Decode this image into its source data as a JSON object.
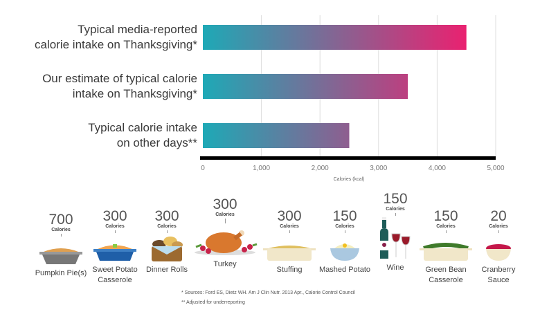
{
  "chart_data": {
    "type": "bar",
    "orientation": "horizontal",
    "categories": [
      "Typical media-reported\ncalorie intake on Thanksgiving*",
      "Our estimate of typical calorie\nintake on Thanksgiving*",
      "Typical calorie intake\non other days**"
    ],
    "values": [
      4500,
      3500,
      2500
    ],
    "xlabel": "Calories (kcal)",
    "xlim": [
      0,
      5000
    ],
    "xticks": [
      "0",
      "1,000",
      "2,000",
      "3,000",
      "4,000",
      "5,000"
    ],
    "xtick_values": [
      0,
      1000,
      2000,
      3000,
      4000,
      5000
    ],
    "grid": "vertical",
    "colors": {
      "gradient_start": "#1ea9b6",
      "gradient_end": "#ea2170",
      "axis": "#000000",
      "grid": "#dddddd"
    }
  },
  "foods": [
    {
      "value": "700",
      "unit": "Calories",
      "label": "Pumpkin Pie(s)",
      "icon": "pie-icon"
    },
    {
      "value": "300",
      "unit": "Calories",
      "label": "Sweet Potato\nCasserole",
      "icon": "casserole-dish-icon"
    },
    {
      "value": "300",
      "unit": "Calories",
      "label": "Dinner Rolls",
      "icon": "bread-basket-icon"
    },
    {
      "value": "300",
      "unit": "Calories",
      "label": "Turkey",
      "icon": "turkey-icon"
    },
    {
      "value": "300",
      "unit": "Calories",
      "label": "Stuffing",
      "icon": "stuffing-dish-icon"
    },
    {
      "value": "150",
      "unit": "Calories",
      "label": "Mashed Potato",
      "icon": "bowl-icon"
    },
    {
      "value": "150",
      "unit": "Calories",
      "label": "Wine",
      "icon": "wine-icon"
    },
    {
      "value": "150",
      "unit": "Calories",
      "label": "Green Bean\nCasserole",
      "icon": "green-bean-dish-icon"
    },
    {
      "value": "20",
      "unit": "Calories",
      "label": "Cranberry\nSauce",
      "icon": "cranberry-bowl-icon"
    }
  ],
  "footnotes": [
    "*  Sources: Ford ES, Dietz WH. Am J Clin Nutr. 2013 Apr., Calorie Control Council",
    "**  Adjusted for underreporting"
  ]
}
